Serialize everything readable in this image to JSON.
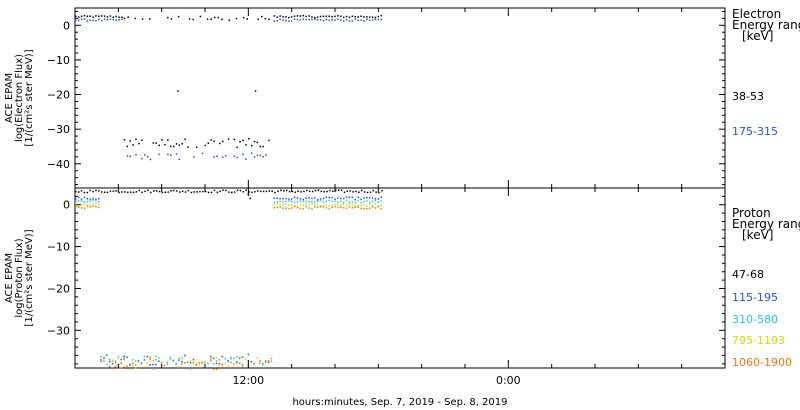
{
  "chart_data": {
    "type": "scatter",
    "xlabel": "hours:minutes, Sep.  7, 2019 - Sep.  8, 2019",
    "x_tick_labels": [
      "12:00",
      "0:00"
    ],
    "x_range": [
      "2019-09-07 04:00",
      "2019-09-08 10:00"
    ],
    "grid": false,
    "legend_placement": "right",
    "panels": [
      {
        "id": "electron",
        "ylabel_lines": [
          "ACE EPAM",
          "log(Electron Flux)",
          "[1/(cm²s ster MeV)]"
        ],
        "ylim": [
          -47,
          5
        ],
        "yticks": [
          0,
          -10,
          -20,
          -30,
          -40
        ],
        "legend_title_lines": [
          "Electron",
          "Energy range",
          "[keV]"
        ],
        "series": [
          {
            "name": "38-53",
            "color": "#000000",
            "segments": [
              {
                "start": "2019-09-07 04:00",
                "end": "2019-09-07 06:15",
                "level": 2.5
              },
              {
                "start": "2019-09-07 06:15",
                "end": "2019-09-07 13:10",
                "level": -34
              },
              {
                "start": "2019-09-07 13:10",
                "end": "2019-09-07 18:10",
                "level": 2.5
              }
            ],
            "scattered_high": {
              "start": "2019-09-07 06:15",
              "end": "2019-09-07 13:10",
              "level": 2
            },
            "outliers": [
              {
                "x": "2019-09-07 08:45",
                "y": -19
              },
              {
                "x": "2019-09-07 12:20",
                "y": -19
              }
            ]
          },
          {
            "name": "175-315",
            "color": "#1f54d6",
            "segments": [
              {
                "start": "2019-09-07 04:00",
                "end": "2019-09-07 06:15",
                "level": 1.5
              },
              {
                "start": "2019-09-07 06:15",
                "end": "2019-09-07 13:10",
                "level": -38
              },
              {
                "start": "2019-09-07 13:10",
                "end": "2019-09-07 18:10",
                "level": 1.5
              }
            ]
          }
        ]
      },
      {
        "id": "proton",
        "ylabel_lines": [
          "ACE EPAM",
          "log(Proton Flux)",
          "[1/(cm²s ster MeV)]"
        ],
        "ylim": [
          -39,
          4
        ],
        "yticks": [
          0,
          -10,
          -20,
          -30
        ],
        "legend_title_lines": [
          "Proton",
          "Energy range",
          "[keV]"
        ],
        "series": [
          {
            "name": "47-68",
            "color": "#000000",
            "segments": [
              {
                "start": "2019-09-07 04:00",
                "end": "2019-09-07 18:10",
                "level": 3.2
              }
            ],
            "outliers": [
              {
                "x": "2019-09-07 12:00",
                "y": 2.5
              },
              {
                "x": "2019-09-07 12:05",
                "y": 1.5
              }
            ]
          },
          {
            "name": "115-195",
            "color": "#1f54d6",
            "segments": [
              {
                "start": "2019-09-07 04:00",
                "end": "2019-09-07 05:10",
                "level": 1.5
              },
              {
                "start": "2019-09-07 05:10",
                "end": "2019-09-07 13:10",
                "level": -37
              },
              {
                "start": "2019-09-07 13:10",
                "end": "2019-09-07 18:10",
                "level": 1.5
              }
            ]
          },
          {
            "name": "310-580",
            "color": "#1ec8dc",
            "segments": [
              {
                "start": "2019-09-07 04:00",
                "end": "2019-09-07 05:10",
                "level": 0.8
              },
              {
                "start": "2019-09-07 05:10",
                "end": "2019-09-07 13:10",
                "level": -37.3
              },
              {
                "start": "2019-09-07 13:10",
                "end": "2019-09-07 18:10",
                "level": 0.8
              }
            ]
          },
          {
            "name": "795-1193",
            "color": "#d8d800",
            "segments": [
              {
                "start": "2019-09-07 04:00",
                "end": "2019-09-07 05:10",
                "level": 0
              },
              {
                "start": "2019-09-07 05:10",
                "end": "2019-09-07 13:10",
                "level": -37.7
              },
              {
                "start": "2019-09-07 13:10",
                "end": "2019-09-07 18:10",
                "level": 0
              }
            ]
          },
          {
            "name": "1060-1900",
            "color": "#e8780a",
            "segments": [
              {
                "start": "2019-09-07 04:00",
                "end": "2019-09-07 05:10",
                "level": -0.7
              },
              {
                "start": "2019-09-07 05:10",
                "end": "2019-09-07 13:10",
                "level": -38.1
              },
              {
                "start": "2019-09-07 13:10",
                "end": "2019-09-07 18:10",
                "level": -0.7
              }
            ]
          }
        ]
      }
    ]
  }
}
